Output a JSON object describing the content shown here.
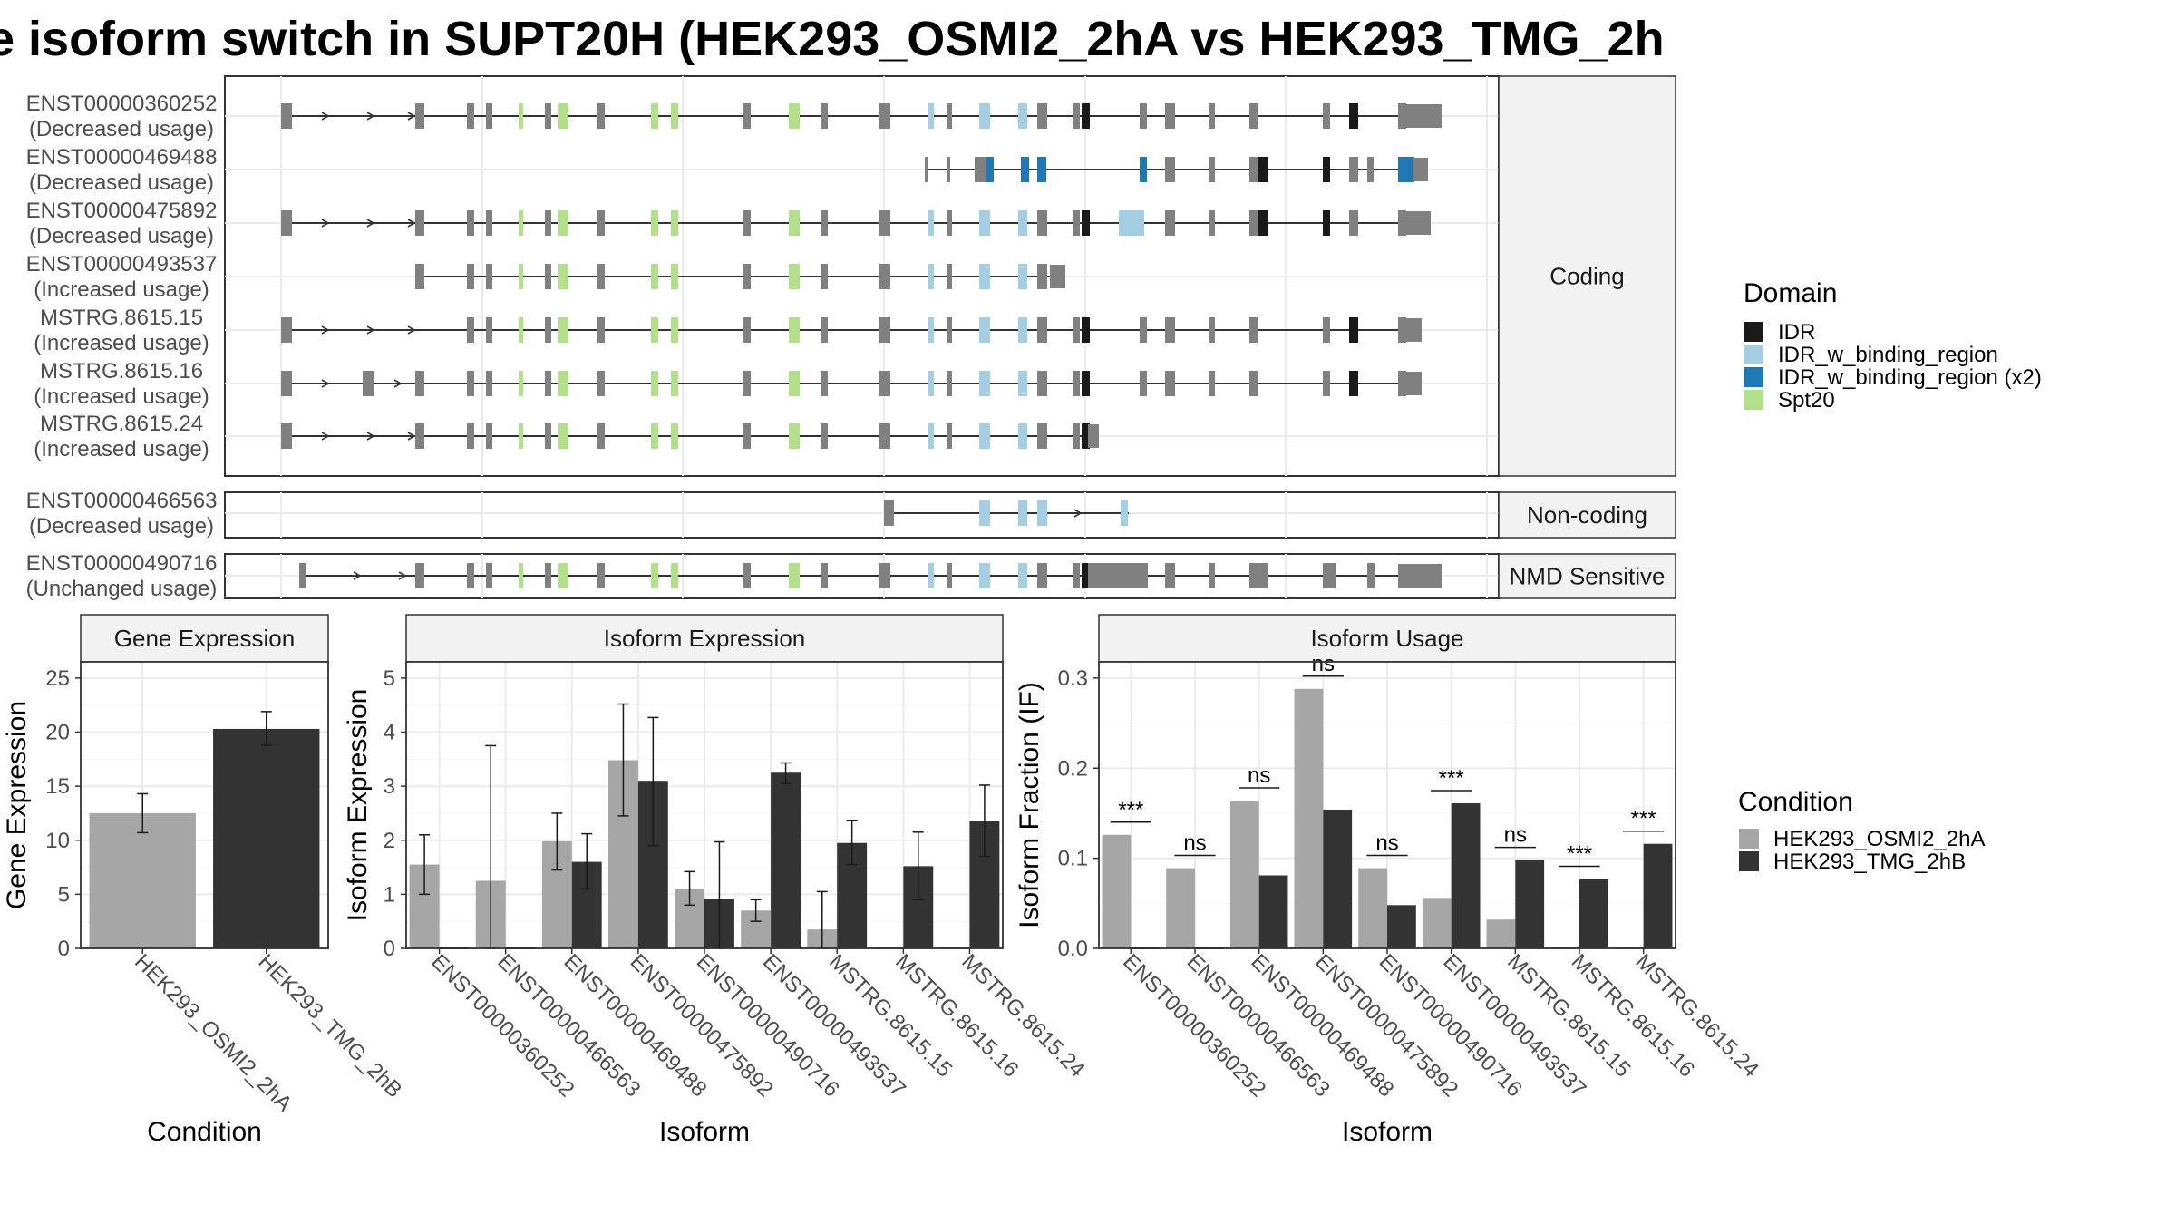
{
  "title": "e isoform switch in SUPT20H (HEK293_OSMI2_2hA vs HEK293_TMG_2h",
  "structure": {
    "categories": [
      "Coding",
      "Non-coding",
      "NMD Sensitive"
    ],
    "isoforms": [
      {
        "id": "ENST00000360252",
        "usage": "(Decreased usage)",
        "category": "Coding"
      },
      {
        "id": "ENST00000469488",
        "usage": "(Decreased usage)",
        "category": "Coding"
      },
      {
        "id": "ENST00000475892",
        "usage": "(Decreased usage)",
        "category": "Coding"
      },
      {
        "id": "ENST00000493537",
        "usage": "(Increased usage)",
        "category": "Coding"
      },
      {
        "id": "MSTRG.8615.15",
        "usage": "(Increased usage)",
        "category": "Coding"
      },
      {
        "id": "MSTRG.8615.16",
        "usage": "(Increased usage)",
        "category": "Coding"
      },
      {
        "id": "MSTRG.8615.24",
        "usage": "(Increased usage)",
        "category": "Coding"
      },
      {
        "id": "ENST00000466563",
        "usage": "(Decreased usage)",
        "category": "Non-coding"
      },
      {
        "id": "ENST00000490716",
        "usage": "(Unchanged usage)",
        "category": "NMD Sensitive"
      }
    ]
  },
  "legends": {
    "domain": {
      "title": "Domain",
      "items": [
        {
          "label": "IDR",
          "color": "#1a1a1a"
        },
        {
          "label": "IDR_w_binding_region",
          "color": "#a6cee3"
        },
        {
          "label": "IDR_w_binding_region (x2)",
          "color": "#1f78b4"
        },
        {
          "label": "Spt20",
          "color": "#b2df8a"
        }
      ]
    },
    "condition": {
      "title": "Condition",
      "items": [
        {
          "label": "HEK293_OSMI2_2hA",
          "color": "#a6a6a6"
        },
        {
          "label": "HEK293_TMG_2hB",
          "color": "#333333"
        }
      ]
    }
  },
  "chart_data": [
    {
      "type": "bar",
      "panel": "Gene Expression",
      "xlabel": "Condition",
      "ylabel": "Gene Expression",
      "ylim": [
        0,
        26.5
      ],
      "yticks": [
        0,
        5,
        10,
        15,
        20,
        25
      ],
      "categories": [
        "HEK293_OSMI2_2hA",
        "HEK293_TMG_2hB"
      ],
      "values": [
        12.5,
        20.3
      ],
      "errors": [
        [
          10.7,
          14.3
        ],
        [
          18.8,
          21.9
        ]
      ],
      "colors": [
        "#a6a6a6",
        "#333333"
      ]
    },
    {
      "type": "bar",
      "panel": "Isoform Expression",
      "xlabel": "Isoform",
      "ylabel": "Isoform Expression",
      "ylim": [
        0,
        5.3
      ],
      "yticks": [
        0,
        1,
        2,
        3,
        4,
        5
      ],
      "categories": [
        "ENST00000360252",
        "ENST00000466563",
        "ENST00000469488",
        "ENST00000475892",
        "ENST00000490716",
        "ENST00000493537",
        "MSTRG.8615.15",
        "MSTRG.8615.16",
        "MSTRG.8615.24"
      ],
      "series": [
        {
          "name": "HEK293_OSMI2_2hA",
          "values": [
            1.55,
            1.25,
            1.98,
            3.48,
            1.1,
            0.7,
            0.35,
            0.0,
            0.0
          ],
          "errors": [
            [
              1.0,
              2.1
            ],
            [
              0.0,
              3.75
            ],
            [
              1.45,
              2.5
            ],
            [
              2.45,
              4.52
            ],
            [
              0.8,
              1.42
            ],
            [
              0.5,
              0.9
            ],
            [
              0.0,
              1.05
            ],
            null,
            null
          ]
        },
        {
          "name": "HEK293_TMG_2hB",
          "values": [
            0.0,
            0.0,
            1.6,
            3.1,
            0.92,
            3.25,
            1.95,
            1.52,
            2.35
          ],
          "errors": [
            null,
            null,
            [
              1.1,
              2.12
            ],
            [
              1.9,
              4.27
            ],
            [
              0.0,
              1.97
            ],
            [
              3.05,
              3.43
            ],
            [
              1.55,
              2.37
            ],
            [
              0.9,
              2.15
            ],
            [
              1.7,
              3.02
            ]
          ]
        }
      ]
    },
    {
      "type": "bar",
      "panel": "Isoform Usage",
      "xlabel": "Isoform",
      "ylabel": "Isoform Fraction (IF)",
      "ylim": [
        0,
        0.318
      ],
      "yticks": [
        0.0,
        0.1,
        0.2,
        0.3
      ],
      "categories": [
        "ENST00000360252",
        "ENST00000466563",
        "ENST00000469488",
        "ENST00000475892",
        "ENST00000490716",
        "ENST00000493537",
        "MSTRG.8615.15",
        "MSTRG.8615.16",
        "MSTRG.8615.24"
      ],
      "series": [
        {
          "name": "HEK293_OSMI2_2hA",
          "values": [
            0.126,
            0.089,
            0.164,
            0.288,
            0.089,
            0.056,
            0.032,
            0.0,
            0.0
          ]
        },
        {
          "name": "HEK293_TMG_2hB",
          "values": [
            0.0,
            0.0,
            0.081,
            0.154,
            0.048,
            0.161,
            0.098,
            0.077,
            0.116
          ]
        }
      ],
      "significance": [
        "***",
        "ns",
        "ns",
        "ns",
        "ns",
        "***",
        "ns",
        "***",
        "***"
      ]
    }
  ]
}
